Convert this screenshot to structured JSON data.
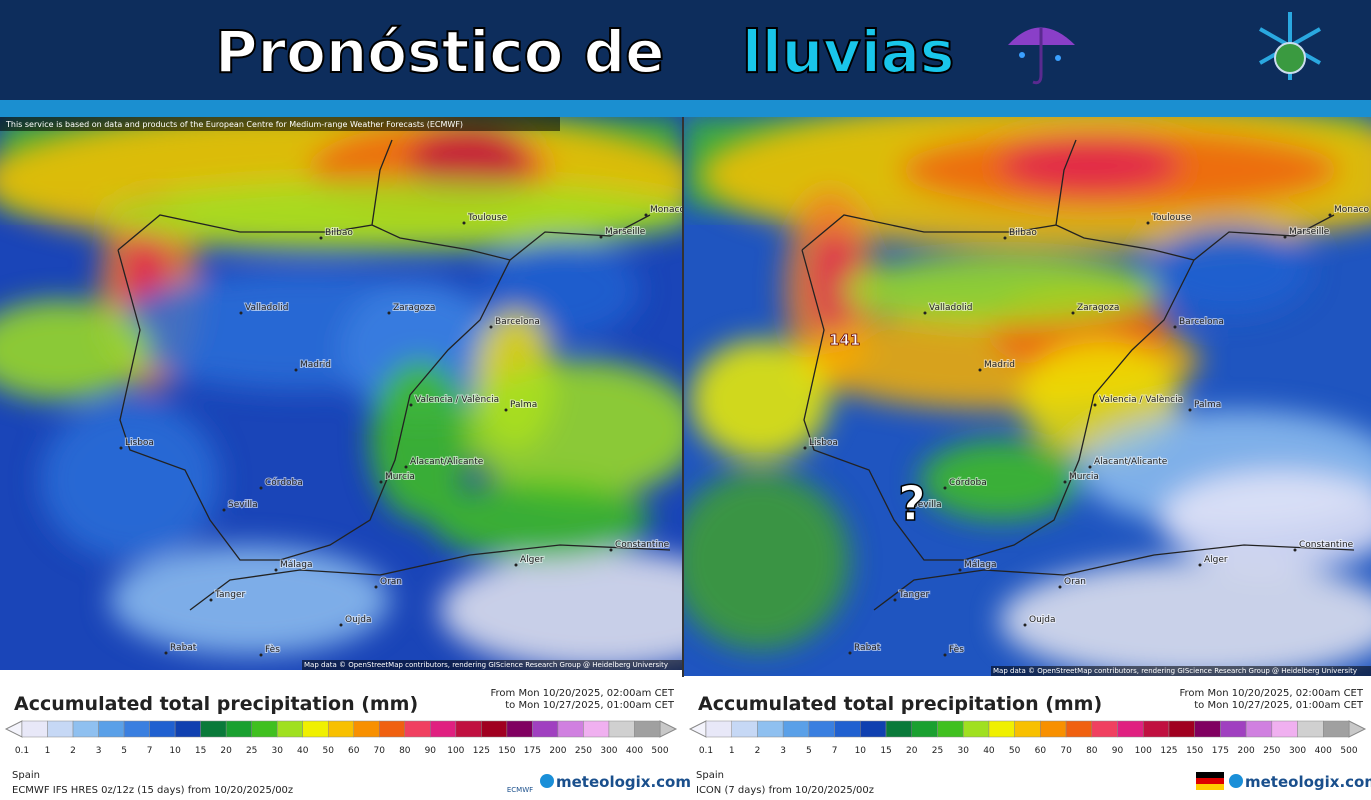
{
  "header": {
    "title_main": "Pronóstico de",
    "title_accent": "lluvias"
  },
  "map": {
    "cities": [
      "Bilbao",
      "Toulouse",
      "Marseille",
      "Monaco",
      "Valladolid",
      "Zaragoza",
      "Barcelona",
      "Madrid",
      "Valencia / València",
      "Palma",
      "Lisboa",
      "Córdoba",
      "Sevilla",
      "Alacant/Alicante",
      "Murcia",
      "Málaga",
      "Alger",
      "Constantine",
      "Tanger",
      "Oran",
      "Oujda",
      "Rabat",
      "Fès"
    ],
    "legend_title": "Accumulated total precipitation (mm)",
    "period": [
      "From Mon 10/20/2025, 02:00am CET",
      "to Mon 10/27/2025, 01:00am CET"
    ],
    "scale": [
      "0.1",
      "1",
      "2",
      "3",
      "5",
      "7",
      "10",
      "15",
      "20",
      "25",
      "30",
      "40",
      "50",
      "60",
      "70",
      "80",
      "90",
      "100",
      "125",
      "150",
      "175",
      "200",
      "250",
      "300",
      "400",
      "500"
    ],
    "map_credit": "Map data © OpenStreetMap contributors, rendering GIScience Research Group @ Heidelberg University",
    "region": "Spain",
    "logo": "meteologix.com"
  },
  "panels": [
    {
      "notice": "This service is based on data and products of the European Centre for Medium-range Weather Forecasts (ECMWF)",
      "model": "ECMWF IFS HRES 0z/12z (15 days)  from  10/20/2025/00z",
      "badge": "ECMWF"
    },
    {
      "marker": "141",
      "question": "?",
      "model": "ICON (7 days)  from  10/20/2025/00z"
    }
  ]
}
